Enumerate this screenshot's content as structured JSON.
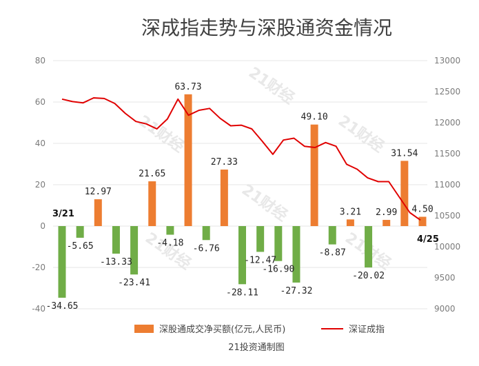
{
  "chart_data": {
    "type": "bar+line",
    "title": "深成指走势与深股通资金情况",
    "source": "21投资通制图",
    "watermark": "21财经",
    "left_axis": {
      "ylim": [
        -40,
        80
      ],
      "ticks": [
        "-40",
        "-20",
        "0",
        "20",
        "40",
        "60",
        "80"
      ]
    },
    "right_axis": {
      "ylim": [
        9000,
        13000
      ],
      "ticks": [
        "9000",
        "9500",
        "10000",
        "10500",
        "11000",
        "11500",
        "12000",
        "12500",
        "13000"
      ]
    },
    "start_date": "3/21",
    "end_date": "4/25",
    "bar_series": {
      "name": "深股通成交净买额(亿元,人民币)",
      "color": "#ed7d31",
      "negative_color": "#70ad47",
      "values": [
        -34.65,
        -5.65,
        12.97,
        -13.33,
        -23.41,
        21.65,
        -4.18,
        63.73,
        -6.76,
        27.33,
        -28.11,
        -12.47,
        -16.9,
        -27.32,
        49.1,
        -8.87,
        3.21,
        -20.02,
        2.99,
        31.54,
        4.5
      ],
      "labels": [
        "-34.65",
        "-5.65",
        "12.97",
        "-13.33",
        "-23.41",
        "21.65",
        "-4.18",
        "63.73",
        "-6.76",
        "27.33",
        "-28.11",
        "-12.47",
        "-16.90",
        "-27.32",
        "49.10",
        "-8.87",
        "3.21",
        "-20.02",
        "2.99",
        "31.54",
        "4.50"
      ]
    },
    "line_series": {
      "name": "深证成指",
      "color": "#e00000",
      "values": [
        12380,
        12340,
        12320,
        12400,
        12390,
        12310,
        12150,
        12020,
        11980,
        11900,
        12060,
        12380,
        12120,
        12200,
        12230,
        12070,
        11950,
        11960,
        11900,
        11700,
        11490,
        11720,
        11750,
        11620,
        11600,
        11680,
        11620,
        11330,
        11250,
        11110,
        11050,
        11050,
        10800,
        10550,
        10430
      ]
    }
  }
}
